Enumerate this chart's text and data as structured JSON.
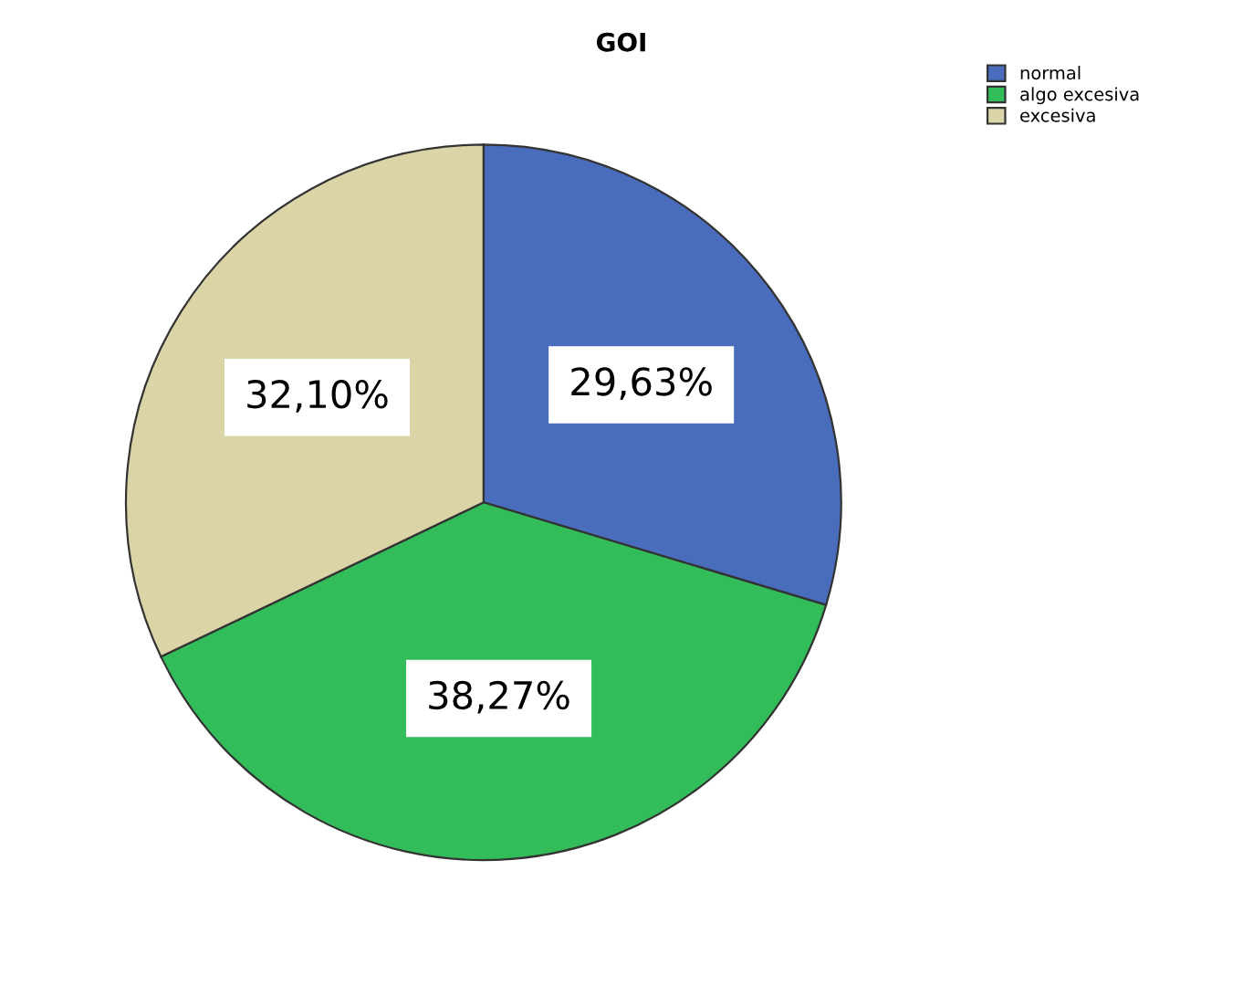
{
  "chart_data": {
    "type": "pie",
    "title": "GOI",
    "categories": [
      "normal",
      "algo excesiva",
      "excesiva"
    ],
    "values": [
      29.63,
      38.27,
      32.1
    ],
    "value_labels": [
      "29,63%",
      "38,27%",
      "32,10%"
    ],
    "colors": [
      "#4a6cbd",
      "#33bd5a",
      "#dbd4a7"
    ],
    "legend": "top right"
  }
}
